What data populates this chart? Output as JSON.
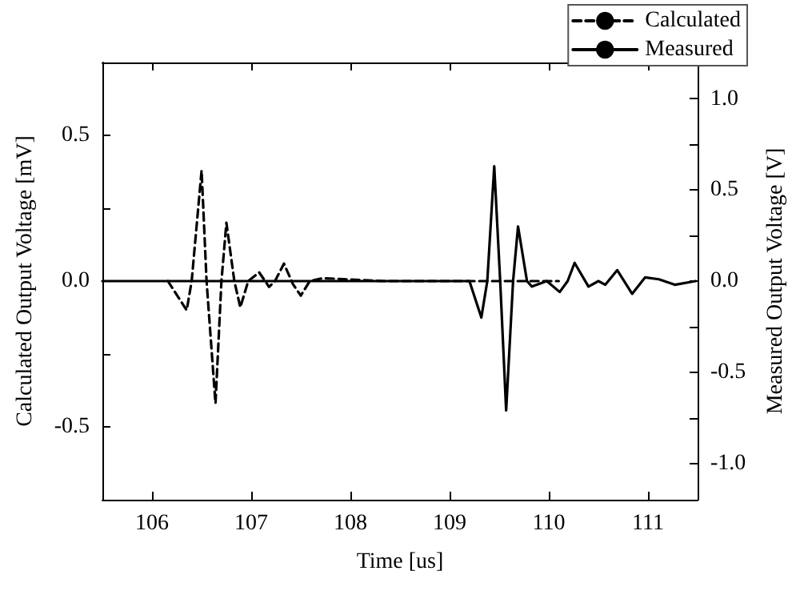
{
  "chart_data": {
    "type": "line",
    "xlabel": "Time [us]",
    "ylabel": "Calculated Output Voltage [mV]",
    "y2label": "Measured Output Voltage [V]",
    "xlim": [
      105.5,
      111.5
    ],
    "xticks": [
      106,
      107,
      108,
      109,
      110,
      111
    ],
    "ylim": [
      -0.75,
      0.75
    ],
    "yticks": [
      -0.5,
      {
        "value": -0.25,
        "label": null
      },
      {
        "value": 0,
        "label": "0.0"
      },
      {
        "value": 0.25,
        "label": null
      },
      0.5
    ],
    "y2lim": [
      -1.2,
      1.2
    ],
    "y2ticks": [
      {
        "value": -1,
        "label": "-1.0"
      },
      {
        "value": -0.75,
        "label": null
      },
      -0.5,
      {
        "value": -0.25,
        "label": null
      },
      {
        "value": 0,
        "label": "0.0"
      },
      {
        "value": 0.25,
        "label": null
      },
      0.5,
      {
        "value": 0.75,
        "label": null
      },
      {
        "value": 1,
        "label": "1.0"
      }
    ],
    "legend": "top right",
    "grid": false,
    "marker": "none",
    "series": [
      {
        "name": "Calculated",
        "color": "#000000",
        "line_style": "dashed",
        "x": [
          106.16,
          106.35,
          106.4,
          106.5,
          106.55,
          106.64,
          106.7,
          106.75,
          106.83,
          106.89,
          106.97,
          107.08,
          107.18,
          107.24,
          107.33,
          107.42,
          107.5,
          107.59,
          107.72,
          108.34,
          110.1
        ],
        "values": [
          0,
          -0.1,
          0,
          0.38,
          0,
          -0.42,
          0,
          0.2,
          0,
          -0.09,
          0,
          0.03,
          -0.02,
          0,
          0.06,
          -0.01,
          -0.05,
          0,
          0.01,
          0,
          0
        ]
      },
      {
        "name": "Measured",
        "color": "#000000",
        "line_style": "solid",
        "axis": "y2",
        "x": [
          105.5,
          109.2,
          109.32,
          109.38,
          109.45,
          109.51,
          109.57,
          109.64,
          109.69,
          109.78,
          109.83,
          109.98,
          110.11,
          110.19,
          110.26,
          110.4,
          110.5,
          110.57,
          110.69,
          110.84,
          110.97,
          111.11,
          111.27,
          111.48
        ],
        "values": [
          0,
          0,
          -0.2,
          0,
          0.63,
          0,
          -0.71,
          0,
          0.3,
          0,
          -0.03,
          0,
          -0.06,
          0,
          0.1,
          -0.03,
          0,
          -0.02,
          0.06,
          -0.07,
          0.02,
          0.01,
          -0.02,
          0
        ]
      }
    ]
  }
}
